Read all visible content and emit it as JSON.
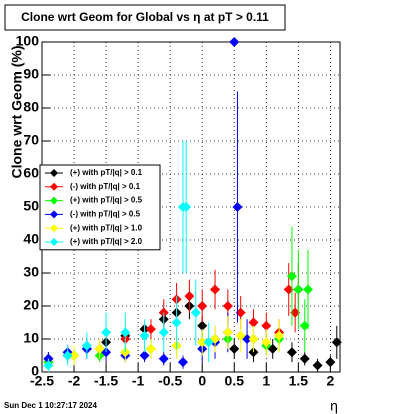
{
  "chart_data": {
    "type": "scatter",
    "title": "Clone wrt Geom for Global vs η at pT > 0.11",
    "x_label": "η",
    "y_label": "Clone wrt Geom (%)",
    "footer": "Sun Dec  1 10:27:17 2024",
    "xlim": [
      -2.5,
      2.15
    ],
    "ylim": [
      0,
      100
    ],
    "xticks": [
      -2.5,
      -2,
      -1.5,
      -1,
      -0.5,
      0,
      0.5,
      1,
      1.5,
      2
    ],
    "yticks": [
      0,
      10,
      20,
      30,
      40,
      50,
      60,
      70,
      80,
      90,
      100
    ],
    "grid": true,
    "legend": "left",
    "series": [
      {
        "name": "(+) with pT/|q| > 0.1",
        "color": "#000000",
        "x": [
          -2.4,
          -2.1,
          -1.8,
          -1.5,
          -1.2,
          -0.9,
          -0.6,
          -0.4,
          -0.2,
          0,
          0.2,
          0.5,
          0.8,
          1.1,
          1.4,
          1.6,
          1.8,
          2.0,
          2.1
        ],
        "values": [
          4,
          5,
          7,
          9,
          11,
          13,
          16,
          18,
          20,
          14,
          10,
          7,
          6,
          7,
          6,
          4,
          2,
          3,
          9
        ],
        "errors": [
          2,
          2,
          2,
          2,
          2,
          2,
          3,
          3,
          4,
          3,
          3,
          3,
          3,
          3,
          3,
          2,
          2,
          2,
          5
        ]
      },
      {
        "name": "(-) with pT/|q| > 0.1",
        "color": "#ff0000",
        "x": [
          -2.4,
          -2.0,
          -1.6,
          -1.2,
          -0.8,
          -0.6,
          -0.4,
          -0.2,
          0,
          0.2,
          0.4,
          0.6,
          0.8,
          1.0,
          1.2,
          1.35,
          1.45,
          1.5
        ],
        "values": [
          3,
          5,
          7,
          10,
          13,
          18,
          22,
          23,
          20,
          25,
          20,
          18,
          15,
          14,
          12,
          25,
          18,
          25
        ],
        "errors": [
          2,
          2,
          2,
          3,
          3,
          4,
          5,
          5,
          5,
          6,
          5,
          5,
          4,
          4,
          4,
          8,
          6,
          8
        ]
      },
      {
        "name": "(+) with pT/|q| > 0.5",
        "color": "#00ff00",
        "x": [
          -2.4,
          -2.0,
          -1.6,
          -1.2,
          -0.8,
          -0.4,
          0,
          0.4,
          0.8,
          1.0,
          1.2,
          1.4,
          1.5,
          1.6,
          1.65
        ],
        "values": [
          3,
          5,
          5,
          6,
          7,
          8,
          9,
          10,
          10,
          8,
          10,
          29,
          25,
          14,
          25
        ],
        "errors": [
          2,
          2,
          2,
          2,
          3,
          3,
          3,
          3,
          3,
          3,
          4,
          15,
          12,
          8,
          12
        ]
      },
      {
        "name": "(-) with pT/|q| > 0.5",
        "color": "#0000ff",
        "x": [
          -2.4,
          -2.1,
          -1.8,
          -1.5,
          -1.2,
          -0.9,
          -0.6,
          -0.3,
          0,
          0.2,
          0.4,
          0.5,
          0.55,
          0.7
        ],
        "values": [
          4,
          6,
          7,
          6,
          5,
          5,
          4,
          3,
          7,
          9,
          12,
          100,
          50,
          10
        ],
        "errors": [
          2,
          2,
          3,
          3,
          2,
          2,
          2,
          2,
          4,
          5,
          6,
          0,
          35,
          6
        ]
      },
      {
        "name": "(+) with pT/|q| > 1.0",
        "color": "#ffff00",
        "x": [
          -2.4,
          -2.0,
          -1.6,
          -1.2,
          -0.8,
          -0.4,
          0,
          0.2,
          0.4,
          0.6,
          0.8,
          1.0,
          1.2
        ],
        "values": [
          2,
          5,
          7,
          6,
          7,
          8,
          9,
          10,
          12,
          11,
          10,
          9,
          11
        ],
        "errors": [
          2,
          3,
          3,
          3,
          3,
          4,
          4,
          4,
          5,
          5,
          4,
          4,
          5
        ]
      },
      {
        "name": "(+) with pT/|q| > 2.0",
        "color": "#00ffff",
        "x": [
          -2.4,
          -2.1,
          -1.8,
          -1.5,
          -1.2,
          -0.9,
          -0.6,
          -0.4,
          -0.3,
          -0.25,
          -0.1,
          0.1
        ],
        "values": [
          2,
          5,
          8,
          12,
          12,
          11,
          12,
          15,
          50,
          50,
          18,
          9
        ],
        "errors": [
          2,
          3,
          4,
          6,
          6,
          5,
          6,
          8,
          20,
          20,
          10,
          6
        ]
      }
    ]
  }
}
